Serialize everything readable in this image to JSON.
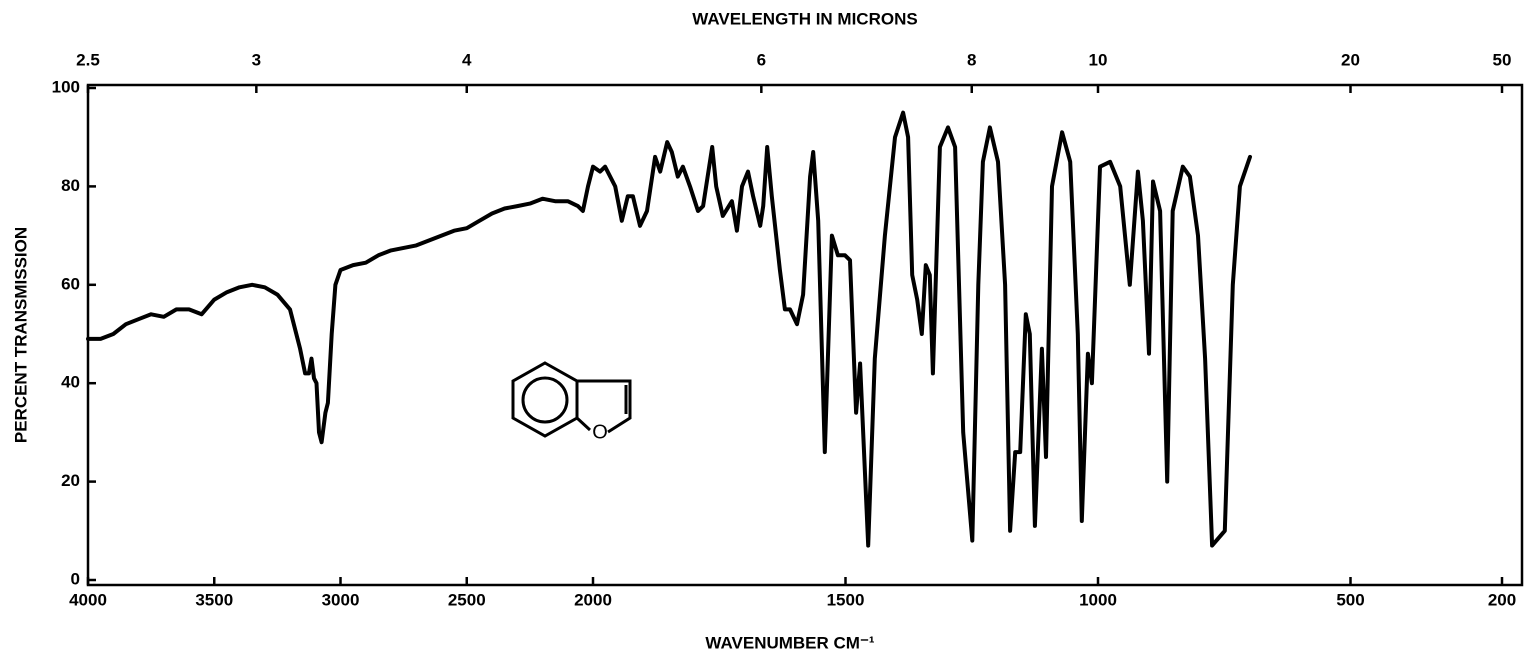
{
  "chart_data": {
    "type": "line",
    "title": "WAVELENGTH IN MICRONS",
    "xlabel": "WAVENUMBER CM⁻¹",
    "ylabel": "PERCENT TRANSMISSION",
    "annotation": "O",
    "color": "#000000",
    "xlim": [
      4000,
      200
    ],
    "ylim": [
      0,
      100
    ],
    "x_scale_break": 2000,
    "xticks": [
      4000,
      3500,
      3000,
      2500,
      2000,
      1500,
      1000,
      500,
      200
    ],
    "yticks": [
      0,
      20,
      40,
      60,
      80,
      100
    ],
    "x2ticks": [
      2.5,
      3,
      4,
      6,
      8,
      10,
      20,
      50
    ],
    "x": [
      4000,
      3950,
      3900,
      3850,
      3800,
      3750,
      3700,
      3650,
      3600,
      3550,
      3500,
      3450,
      3400,
      3350,
      3300,
      3250,
      3200,
      3160,
      3140,
      3125,
      3115,
      3105,
      3095,
      3085,
      3075,
      3060,
      3050,
      3035,
      3020,
      3000,
      2950,
      2900,
      2850,
      2800,
      2750,
      2700,
      2650,
      2600,
      2550,
      2500,
      2450,
      2400,
      2350,
      2300,
      2250,
      2200,
      2150,
      2100,
      2060,
      2040,
      2020,
      2000,
      1986,
      1976,
      1956,
      1943,
      1931,
      1921,
      1907,
      1893,
      1877,
      1867,
      1853,
      1844,
      1832,
      1822,
      1808,
      1792,
      1782,
      1764,
      1756,
      1743,
      1725,
      1715,
      1705,
      1693,
      1683,
      1669,
      1663,
      1655,
      1646,
      1630,
      1620,
      1610,
      1596,
      1584,
      1570,
      1564,
      1554,
      1541,
      1527,
      1515,
      1501,
      1491,
      1479,
      1471,
      1455,
      1442,
      1422,
      1402,
      1386,
      1376,
      1368,
      1358,
      1349,
      1341,
      1333,
      1327,
      1313,
      1297,
      1283,
      1267,
      1249,
      1237,
      1228,
      1214,
      1198,
      1184,
      1174,
      1164,
      1154,
      1143,
      1135,
      1125,
      1111,
      1103,
      1091,
      1071,
      1055,
      1040,
      1032,
      1020,
      1012,
      996,
      976,
      956,
      937,
      921,
      911,
      899,
      891,
      877,
      863,
      852,
      832,
      818,
      802,
      788,
      774,
      749,
      733,
      719,
      699
    ],
    "values": [
      49,
      49,
      50,
      52,
      53,
      54,
      53.5,
      55,
      55,
      54,
      57,
      58.5,
      59.5,
      60,
      59.5,
      58,
      55,
      47,
      42,
      42,
      45,
      41,
      40,
      30,
      28,
      34,
      36,
      50,
      60,
      63,
      64,
      64.5,
      66,
      67,
      67.5,
      68,
      69,
      70,
      71,
      71.5,
      73,
      74.5,
      75.5,
      76,
      76.5,
      77.5,
      77,
      77,
      76,
      75,
      80,
      84,
      83,
      84,
      80,
      73,
      78,
      78,
      72,
      75,
      86,
      83,
      89,
      87,
      82,
      84,
      80,
      75,
      76,
      88,
      80,
      74,
      77,
      71,
      80,
      83,
      78,
      72,
      76,
      88,
      78,
      63,
      55,
      55,
      52,
      58,
      82,
      87,
      73,
      26,
      70,
      66,
      66,
      65,
      34,
      44,
      7,
      45,
      70,
      90,
      95,
      90,
      62,
      57,
      50,
      64,
      62,
      42,
      88,
      92,
      88,
      30,
      8,
      60,
      85,
      92,
      85,
      60,
      10,
      26,
      26,
      54,
      50,
      11,
      47,
      25,
      80,
      91,
      85,
      50,
      12,
      46,
      40,
      84,
      85,
      80,
      60,
      83,
      73,
      46,
      81,
      75,
      20,
      75,
      84,
      82,
      70,
      45,
      7,
      10,
      60,
      80,
      86
    ]
  }
}
